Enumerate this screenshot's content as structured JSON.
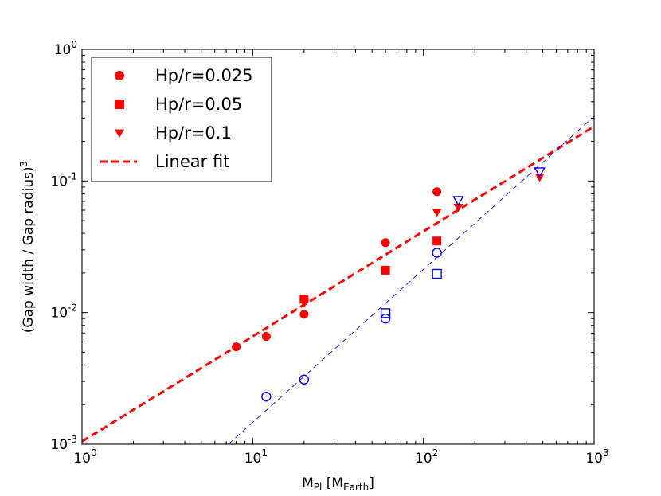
{
  "chart_data": {
    "type": "scatter",
    "xscale": "log",
    "yscale": "log",
    "xlim": [
      1,
      1000
    ],
    "ylim": [
      0.001,
      1
    ],
    "x_ticks": [
      {
        "value": 1,
        "base": "10",
        "exp": "0"
      },
      {
        "value": 10,
        "base": "10",
        "exp": "1"
      },
      {
        "value": 100,
        "base": "10",
        "exp": "2"
      },
      {
        "value": 1000,
        "base": "10",
        "exp": "3"
      }
    ],
    "y_ticks": [
      {
        "value": 0.001,
        "base": "10",
        "exp": "-3"
      },
      {
        "value": 0.01,
        "base": "10",
        "exp": "-2"
      },
      {
        "value": 0.1,
        "base": "10",
        "exp": "-1"
      },
      {
        "value": 1,
        "base": "10",
        "exp": "0"
      }
    ],
    "xlabel": {
      "main": "M",
      "sub1": "Pl",
      "mid": " [M",
      "sub2": "Earth",
      "end": "]"
    },
    "ylabel": {
      "main": "(Gap width / Gap radius)",
      "sup": "3"
    },
    "series": [
      {
        "name": "Hp/r=0.025",
        "marker": "circle",
        "filled": true,
        "color": "#ff0000",
        "points": [
          [
            8,
            0.0055
          ],
          [
            12,
            0.0066
          ],
          [
            20,
            0.0097
          ],
          [
            60,
            0.034
          ],
          [
            120,
            0.083
          ]
        ]
      },
      {
        "name": "Hp/r=0.05",
        "marker": "square",
        "filled": true,
        "color": "#ff0000",
        "points": [
          [
            20,
            0.0127
          ],
          [
            60,
            0.021
          ],
          [
            120,
            0.035
          ]
        ]
      },
      {
        "name": "Hp/r=0.1",
        "marker": "triangle-down",
        "filled": true,
        "color": "#ff0000",
        "points": [
          [
            20,
            0.0118
          ],
          [
            120,
            0.058
          ],
          [
            160,
            0.063
          ],
          [
            480,
            0.107
          ]
        ]
      },
      {
        "name": "",
        "marker": "circle",
        "filled": false,
        "color": "#0000ff",
        "points": [
          [
            12,
            0.0023
          ],
          [
            20,
            0.0031
          ],
          [
            60,
            0.009
          ],
          [
            120,
            0.0285
          ]
        ]
      },
      {
        "name": "",
        "marker": "square",
        "filled": false,
        "color": "#0000ff",
        "points": [
          [
            60,
            0.0099
          ],
          [
            120,
            0.0197
          ]
        ]
      },
      {
        "name": "",
        "marker": "triangle-down",
        "filled": false,
        "color": "#0000ff",
        "points": [
          [
            160,
            0.0715
          ],
          [
            480,
            0.118
          ]
        ]
      }
    ],
    "fits": [
      {
        "name": "Linear fit",
        "color": "#ff0000",
        "style": "dashed",
        "width": "thick",
        "points": [
          [
            1,
            0.00105
          ],
          [
            1000,
            0.26
          ]
        ]
      },
      {
        "name": "",
        "color": "#0000ff",
        "style": "dashed",
        "width": "thin",
        "points": [
          [
            7.2,
            0.001
          ],
          [
            1000,
            0.31
          ]
        ]
      }
    ],
    "legend": {
      "position": "top-left",
      "entries": [
        {
          "label": "Hp/r=0.025",
          "marker": "circle"
        },
        {
          "label": "Hp/r=0.05",
          "marker": "square"
        },
        {
          "label": "Hp/r=0.1",
          "marker": "triangle-down"
        },
        {
          "label": "Linear fit",
          "marker": "dashed-line"
        }
      ]
    }
  }
}
